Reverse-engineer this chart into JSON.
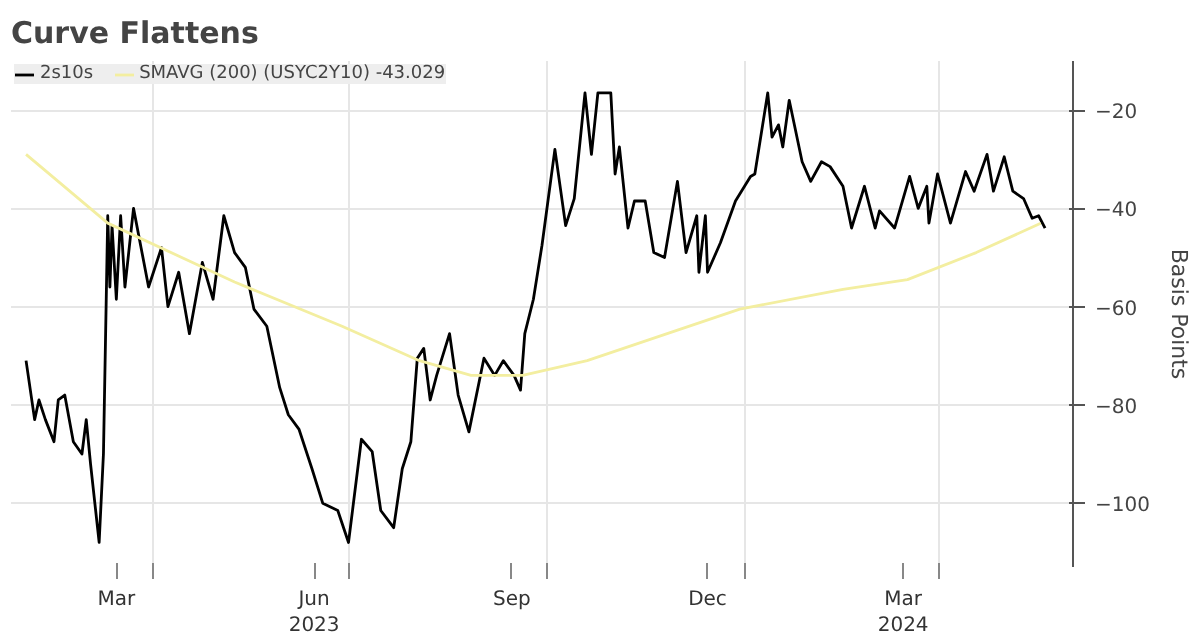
{
  "chart_data": {
    "type": "line",
    "title": "Curve Flattens",
    "ylabel": "Basis Points",
    "xlim": [
      "2023-01-25",
      "2024-06-02"
    ],
    "ylim": [
      -113,
      -10
    ],
    "xticks": [
      {
        "value": "2023-03-15",
        "label": "Mar"
      },
      {
        "value": "2023-04-01",
        "label": null
      },
      {
        "value": "2023-06-15",
        "label": "Jun\n2023"
      },
      {
        "value": "2023-07-01",
        "label": null
      },
      {
        "value": "2023-09-15",
        "label": "Sep"
      },
      {
        "value": "2023-10-01",
        "label": null
      },
      {
        "value": "2023-12-15",
        "label": "Dec"
      },
      {
        "value": "2024-01-01",
        "label": null
      },
      {
        "value": "2024-03-15",
        "label": "Mar\n2024"
      },
      {
        "value": "2024-04-01",
        "label": null
      }
    ],
    "yticks": [
      -20,
      -40,
      -60,
      -80,
      -100
    ],
    "grid": true,
    "legend": "top left",
    "marker": "none",
    "line_style": "solid",
    "series": [
      {
        "name": "2s10s",
        "color": "#000000",
        "x": [
          "2023-02-01",
          "2023-02-05",
          "2023-02-07",
          "2023-02-10",
          "2023-02-14",
          "2023-02-16",
          "2023-02-19",
          "2023-02-23",
          "2023-02-27",
          "2023-03-01",
          "2023-03-03",
          "2023-03-07",
          "2023-03-09",
          "2023-03-11",
          "2023-03-12",
          "2023-03-13",
          "2023-03-15",
          "2023-03-17",
          "2023-03-19",
          "2023-03-23",
          "2023-03-30",
          "2023-04-05",
          "2023-04-08",
          "2023-04-13",
          "2023-04-18",
          "2023-04-24",
          "2023-04-29",
          "2023-05-04",
          "2023-05-09",
          "2023-05-14",
          "2023-05-18",
          "2023-05-24",
          "2023-05-30",
          "2023-06-03",
          "2023-06-08",
          "2023-06-14",
          "2023-06-19",
          "2023-06-26",
          "2023-07-01",
          "2023-07-07",
          "2023-07-12",
          "2023-07-16",
          "2023-07-22",
          "2023-07-26",
          "2023-07-30",
          "2023-08-02",
          "2023-08-05",
          "2023-08-08",
          "2023-08-11",
          "2023-08-17",
          "2023-08-21",
          "2023-08-26",
          "2023-09-02",
          "2023-09-07",
          "2023-09-11",
          "2023-09-16",
          "2023-09-19",
          "2023-09-21",
          "2023-09-25",
          "2023-09-29",
          "2023-10-05",
          "2023-10-10",
          "2023-10-14",
          "2023-10-19",
          "2023-10-22",
          "2023-10-25",
          "2023-10-31",
          "2023-11-02",
          "2023-11-04",
          "2023-11-08",
          "2023-11-11",
          "2023-11-16",
          "2023-11-20",
          "2023-11-25",
          "2023-12-01",
          "2023-12-05",
          "2023-12-10",
          "2023-12-11",
          "2023-12-14",
          "2023-12-15",
          "2023-12-21",
          "2023-12-28",
          "2024-01-04",
          "2024-01-06",
          "2024-01-12",
          "2024-01-14",
          "2024-01-17",
          "2024-01-19",
          "2024-01-22",
          "2024-01-28",
          "2024-02-01",
          "2024-02-06",
          "2024-02-10",
          "2024-02-16",
          "2024-02-20",
          "2024-02-26",
          "2024-03-02",
          "2024-03-04",
          "2024-03-11",
          "2024-03-18",
          "2024-03-22",
          "2024-03-26",
          "2024-03-27",
          "2024-03-31",
          "2024-04-06",
          "2024-04-13",
          "2024-04-17",
          "2024-04-23",
          "2024-04-26",
          "2024-05-01",
          "2024-05-05",
          "2024-05-10",
          "2024-05-14",
          "2024-05-17",
          "2024-05-20"
        ],
        "values": [
          -71,
          -83,
          -79,
          -83,
          -87.5,
          -79,
          -78,
          -87.5,
          -90,
          -83,
          -92,
          -108,
          -90,
          -41.5,
          -56,
          -43.5,
          -58.5,
          -41.5,
          -56,
          -40,
          -56,
          -48,
          -60,
          -53,
          -65.5,
          -51,
          -58.5,
          -41.5,
          -49,
          -52,
          -60.5,
          -64,
          -76.5,
          -82,
          -85,
          -93,
          -100,
          -101.5,
          -108,
          -87,
          -89.5,
          -101.5,
          -105,
          -93,
          -87.5,
          -70.5,
          -68.5,
          -79,
          -74,
          -65.5,
          -78,
          -85.5,
          -70.5,
          -74,
          -71,
          -74,
          -77,
          -65.5,
          -58.5,
          -47.5,
          -28,
          -43.5,
          -38,
          -16.5,
          -29,
          -16.5,
          -16.5,
          -33,
          -27.5,
          -44,
          -38.5,
          -38.5,
          -49,
          -50,
          -34.5,
          -49,
          -41.5,
          -53,
          -41.5,
          -53,
          -47,
          -38.5,
          -33.5,
          -33,
          -16.5,
          -25.5,
          -23,
          -27.5,
          -18,
          -30.5,
          -34.5,
          -30.5,
          -31.5,
          -35.5,
          -44,
          -35.5,
          -44,
          -40.5,
          -44,
          -33.5,
          -40,
          -35.5,
          -43,
          -33,
          -43,
          -32.5,
          -36.5,
          -29,
          -36.5,
          -29.5,
          -36.5,
          -38,
          -42,
          -41.5,
          -44
        ]
      },
      {
        "name": "SMAVG (200) (USYC2Y10) -43.029",
        "color": "#f3eea0",
        "x": [
          "2023-02-01",
          "2023-03-11",
          "2023-05-09",
          "2023-06-28",
          "2023-08-03",
          "2023-08-27",
          "2023-09-20",
          "2023-10-20",
          "2023-12-30",
          "2024-02-16",
          "2024-03-17",
          "2024-04-18",
          "2024-05-18"
        ],
        "values": [
          -29,
          -43,
          -55,
          -64,
          -71,
          -74,
          -74,
          -71,
          -60.5,
          -56.5,
          -54.5,
          -49,
          -43.029
        ]
      }
    ]
  }
}
